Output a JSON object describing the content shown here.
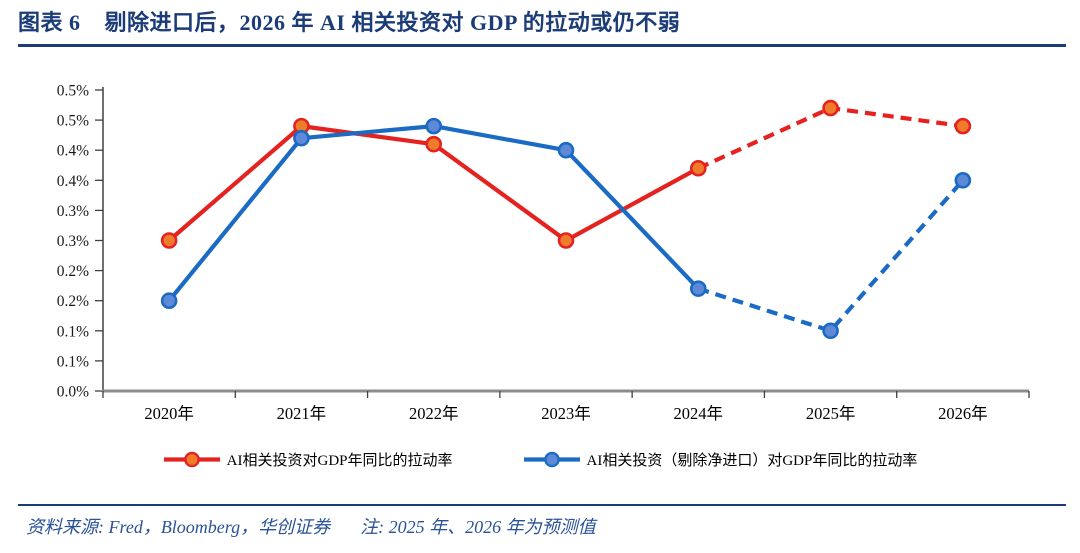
{
  "header": {
    "figure_label": "图表 6",
    "title": "剔除进口后，2026 年 AI 相关投资对 GDP 的拉动或仍不弱"
  },
  "footer": {
    "source_note": "资料来源: Fred，Bloomberg，华创证券",
    "forecast_note": "注: 2025 年、2026 年为预测值"
  },
  "colors": {
    "navy": "#1c3c78",
    "footer_blue": "#2a5298",
    "axis_line_gray": "#8c8c8c",
    "tick_dark": "#404040",
    "label_black": "#1a1a1a"
  },
  "chart_data": {
    "type": "line",
    "categories": [
      "2020年",
      "2021年",
      "2022年",
      "2023年",
      "2024年",
      "2025年",
      "2026年"
    ],
    "series": [
      {
        "name": "AI相关投资对GDP年同比的拉动率",
        "values": [
          0.25,
          0.44,
          0.41,
          0.25,
          0.37,
          0.47,
          0.44
        ],
        "color": "#e42320",
        "marker_fill": "#ee7c2b",
        "dashed_from_index": 4
      },
      {
        "name": "AI相关投资（剔除净进口）对GDP年同比的拉动率",
        "values": [
          0.15,
          0.42,
          0.44,
          0.4,
          0.17,
          0.1,
          0.35
        ],
        "color": "#1b6bc4",
        "marker_fill": "#5e89d6",
        "dashed_from_index": 4
      }
    ],
    "ylim": [
      0,
      0.5
    ],
    "y_unit": "%",
    "y_tick_step": 0.05,
    "y_tick_labels_top_to_bottom": [
      "0.5%",
      "0.5%",
      "0.4%",
      "0.4%",
      "0.3%",
      "0.3%",
      "0.2%",
      "0.2%",
      "0.1%",
      "0.1%",
      "0.0%"
    ],
    "grid": "off",
    "legend_position": "bottom",
    "dashed_segments_note": "2024→2026 段为虚线（预测区间）"
  }
}
